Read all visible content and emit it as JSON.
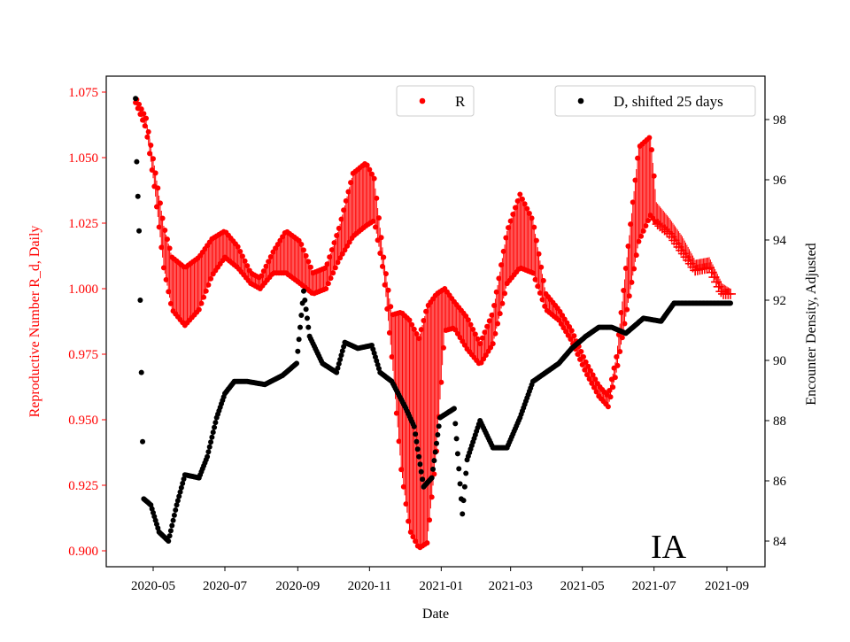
{
  "chart_data": {
    "type": "scatter",
    "xlabel": "Date",
    "ylabel_left": "Reproductive Number R_d, Daily",
    "ylabel_right": "Encounter Density, Adjusted",
    "x_ticks": [
      "2020-05",
      "2020-07",
      "2020-09",
      "2020-11",
      "2021-01",
      "2021-03",
      "2021-05",
      "2021-07",
      "2021-09"
    ],
    "y_left_ticks": [
      "0.900",
      "0.925",
      "0.950",
      "0.975",
      "1.000",
      "1.025",
      "1.050",
      "1.075"
    ],
    "y_right_ticks": [
      "84",
      "86",
      "88",
      "90",
      "92",
      "94",
      "96",
      "98"
    ],
    "ylim_left": [
      0.895,
      1.082
    ],
    "ylim_right": [
      83.6,
      99.0
    ],
    "xlim": [
      "2020-03-28",
      "2021-10-02"
    ],
    "grid": false,
    "colors": {
      "R": "#ff0000",
      "D": "#000000",
      "left_axis": "#ff0000",
      "right_axis": "#000000"
    },
    "legends": [
      {
        "label": "R",
        "placement": "top-center",
        "color": "#ff0000"
      },
      {
        "label": "D, shifted 25 days",
        "placement": "top-right",
        "color": "#000000"
      }
    ],
    "annotation": "IA",
    "series": [
      {
        "name": "R",
        "axis": "left",
        "marker": "dot",
        "plus_marker_from": "2021-07-03",
        "points": [
          [
            "2020-04-16",
            1.072,
            0.001
          ],
          [
            "2020-04-25",
            1.063,
            0.002
          ],
          [
            "2020-05-02",
            1.043,
            0.004
          ],
          [
            "2020-05-10",
            1.016,
            0.008
          ],
          [
            "2020-05-17",
            1.002,
            0.01
          ],
          [
            "2020-05-28",
            0.997,
            0.011
          ],
          [
            "2020-06-09",
            1.002,
            0.01
          ],
          [
            "2020-06-20",
            1.012,
            0.007
          ],
          [
            "2020-07-01",
            1.017,
            0.005
          ],
          [
            "2020-07-12",
            1.012,
            0.004
          ],
          [
            "2020-07-23",
            1.004,
            0.002
          ],
          [
            "2020-07-31",
            1.002,
            0.002
          ],
          [
            "2020-08-11",
            1.01,
            0.004
          ],
          [
            "2020-08-22",
            1.014,
            0.008
          ],
          [
            "2020-09-03",
            1.01,
            0.008
          ],
          [
            "2020-09-14",
            1.002,
            0.004
          ],
          [
            "2020-09-25",
            1.004,
            0.004
          ],
          [
            "2020-10-06",
            1.017,
            0.006
          ],
          [
            "2020-10-18",
            1.032,
            0.012
          ],
          [
            "2020-10-29",
            1.036,
            0.012
          ],
          [
            "2020-11-05",
            1.034,
            0.008
          ],
          [
            "2020-11-13",
            1.009,
            0.003
          ],
          [
            "2020-11-20",
            0.982,
            0.008
          ],
          [
            "2020-11-28",
            0.961,
            0.03
          ],
          [
            "2020-12-05",
            0.948,
            0.04
          ],
          [
            "2020-12-13",
            0.941,
            0.04
          ],
          [
            "2020-12-20",
            0.948,
            0.045
          ],
          [
            "2020-12-28",
            0.968,
            0.03
          ],
          [
            "2021-01-04",
            0.992,
            0.008
          ],
          [
            "2021-01-12",
            0.99,
            0.005
          ],
          [
            "2021-01-23",
            0.983,
            0.006
          ],
          [
            "2021-02-03",
            0.975,
            0.004
          ],
          [
            "2021-02-14",
            0.985,
            0.006
          ],
          [
            "2021-02-26",
            1.012,
            0.01
          ],
          [
            "2021-03-09",
            1.022,
            0.014
          ],
          [
            "2021-03-20",
            1.016,
            0.01
          ],
          [
            "2021-03-31",
            0.995,
            0.003
          ],
          [
            "2021-04-11",
            0.99,
            0.002
          ],
          [
            "2021-04-22",
            0.982,
            0.002
          ],
          [
            "2021-05-04",
            0.97,
            0.002
          ],
          [
            "2021-05-15",
            0.961,
            0.002
          ],
          [
            "2021-05-23",
            0.957,
            0.002
          ],
          [
            "2021-05-30",
            0.971,
            0.003
          ],
          [
            "2021-06-08",
            1.002,
            0.01
          ],
          [
            "2021-06-18",
            1.036,
            0.018
          ],
          [
            "2021-06-28",
            1.043,
            0.015
          ],
          [
            "2021-07-03",
            1.029,
            0.004
          ],
          [
            "2021-07-14",
            1.024,
            0.003
          ],
          [
            "2021-07-25",
            1.017,
            0.003
          ],
          [
            "2021-08-05",
            1.009,
            0.002
          ],
          [
            "2021-08-17",
            1.01,
            0.002
          ],
          [
            "2021-08-28",
            1.0,
            0.002
          ],
          [
            "2021-09-04",
            0.999,
            0.001
          ]
        ]
      },
      {
        "name": "D, shifted 25 days",
        "axis": "right",
        "marker": "dot",
        "points": [
          [
            "2020-04-16",
            98.7
          ],
          [
            "2020-04-17",
            96.6
          ],
          [
            "2020-04-19",
            94.3
          ],
          [
            "2020-04-20",
            92.0
          ],
          [
            "2020-04-21",
            89.6
          ],
          [
            "2020-04-22",
            87.3
          ],
          [
            "2020-04-23",
            85.4
          ],
          [
            "2020-04-29",
            85.2
          ],
          [
            "2020-05-06",
            84.3
          ],
          [
            "2020-05-14",
            84.0
          ],
          [
            "2020-05-21",
            85.2
          ],
          [
            "2020-05-28",
            86.2
          ],
          [
            "2020-06-09",
            86.1
          ],
          [
            "2020-06-16",
            86.8
          ],
          [
            "2020-06-24",
            88.1
          ],
          [
            "2020-07-01",
            88.9
          ],
          [
            "2020-07-09",
            89.3
          ],
          [
            "2020-07-20",
            89.3
          ],
          [
            "2020-08-04",
            89.2
          ],
          [
            "2020-08-19",
            89.5
          ],
          [
            "2020-08-31",
            89.9
          ],
          [
            "2020-09-06",
            92.3
          ],
          [
            "2020-09-11",
            90.8
          ],
          [
            "2020-09-22",
            89.9
          ],
          [
            "2020-10-04",
            89.6
          ],
          [
            "2020-10-11",
            90.6
          ],
          [
            "2020-10-22",
            90.4
          ],
          [
            "2020-11-03",
            90.5
          ],
          [
            "2020-11-10",
            89.6
          ],
          [
            "2020-11-20",
            89.3
          ],
          [
            "2020-12-02",
            88.4
          ],
          [
            "2020-12-09",
            87.8
          ],
          [
            "2020-12-17",
            85.8
          ],
          [
            "2020-12-24",
            86.1
          ],
          [
            "2020-12-31",
            88.1
          ],
          [
            "2021-01-12",
            88.4
          ],
          [
            "2021-01-19",
            84.9
          ],
          [
            "2021-01-23",
            86.7
          ],
          [
            "2021-02-03",
            88.0
          ],
          [
            "2021-02-14",
            87.1
          ],
          [
            "2021-02-26",
            87.1
          ],
          [
            "2021-03-09",
            88.1
          ],
          [
            "2021-03-20",
            89.3
          ],
          [
            "2021-03-31",
            89.6
          ],
          [
            "2021-04-11",
            89.9
          ],
          [
            "2021-04-22",
            90.4
          ],
          [
            "2021-05-04",
            90.8
          ],
          [
            "2021-05-15",
            91.1
          ],
          [
            "2021-05-26",
            91.1
          ],
          [
            "2021-06-07",
            90.9
          ],
          [
            "2021-06-22",
            91.4
          ],
          [
            "2021-07-07",
            91.3
          ],
          [
            "2021-07-18",
            91.9
          ],
          [
            "2021-09-04",
            91.9
          ]
        ]
      }
    ]
  }
}
